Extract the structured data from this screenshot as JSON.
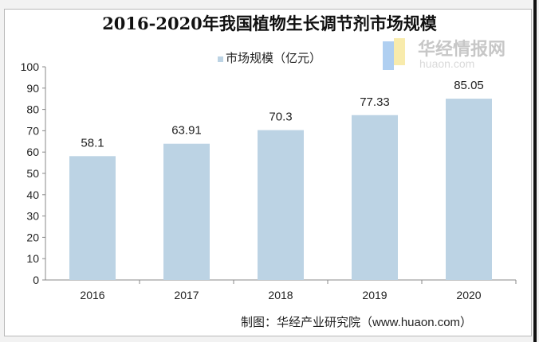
{
  "chart_data": {
    "type": "bar",
    "title": "2016-2020年我国植物生长调节剂市场规模",
    "categories": [
      "2016",
      "2017",
      "2018",
      "2019",
      "2020"
    ],
    "series": [
      {
        "name": "市场规模（亿元）",
        "values": [
          58.1,
          63.91,
          70.3,
          77.33,
          85.05
        ],
        "labels": [
          "58.1",
          "63.91",
          "70.3",
          "77.33",
          "85.05"
        ]
      }
    ],
    "ylim": [
      0,
      100
    ],
    "yticks": [
      "0",
      "10",
      "20",
      "30",
      "40",
      "50",
      "60",
      "70",
      "80",
      "90",
      "100"
    ],
    "grid": false,
    "legend": "top",
    "bar_color": "#bcd3e4",
    "source": "制图：华经产业研究院（www.huaon.com）"
  },
  "watermark": {
    "text": "华经情报网",
    "url": "huaon.com"
  }
}
